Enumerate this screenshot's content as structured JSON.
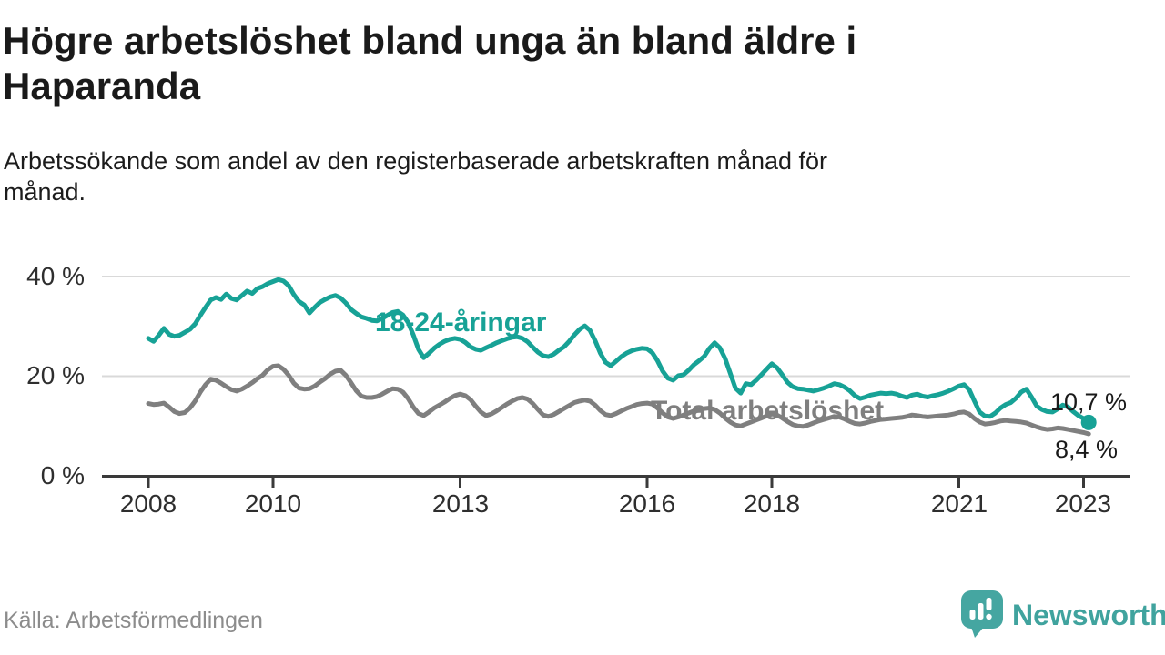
{
  "header": {
    "title_lines": [
      "Högre arbetslöshet bland unga än bland äldre i",
      "Haparanda"
    ],
    "subtitle_lines": [
      "Arbetssökande som andel av den registerbaserade arbetskraften månad för",
      "månad."
    ]
  },
  "chart_data": {
    "type": "line",
    "title": "Högre arbetslöshet bland unga än bland äldre i Haparanda",
    "subtitle": "Arbetssökande som andel av den registerbaserade arbetskraften månad för månad.",
    "unit": "%",
    "frequency": "monthly",
    "x_start": "2008-01",
    "x_end": "2023-02",
    "ylim": [
      0,
      44
    ],
    "grid": "horizontal",
    "legend_position": "inline-annotations",
    "yticks": [
      {
        "value": 40,
        "label": "40 %"
      },
      {
        "value": 20,
        "label": "20 %"
      },
      {
        "value": 0,
        "label": "0 %"
      }
    ],
    "xticks": [
      {
        "year": 2008,
        "label": "2008"
      },
      {
        "year": 2010,
        "label": "2010"
      },
      {
        "year": 2013,
        "label": "2013"
      },
      {
        "year": 2016,
        "label": "2016"
      },
      {
        "year": 2018,
        "label": "2018"
      },
      {
        "year": 2021,
        "label": "2021"
      },
      {
        "year": 2023,
        "label": "2023"
      }
    ],
    "series": [
      {
        "name": "Total arbetslöshet",
        "color": "#7f7f7f",
        "end_label": "8,4 %",
        "end_value": 8.4,
        "values": [
          14.5,
          14.3,
          14.4,
          14.6,
          13.8,
          12.9,
          12.5,
          12.7,
          13.6,
          15.0,
          16.8,
          18.3,
          19.4,
          19.2,
          18.6,
          17.9,
          17.3,
          17.0,
          17.4,
          18.0,
          18.7,
          19.5,
          20.2,
          21.3,
          22.0,
          22.1,
          21.4,
          20.2,
          18.6,
          17.6,
          17.4,
          17.5,
          18.0,
          18.8,
          19.5,
          20.4,
          21.0,
          21.2,
          20.2,
          18.7,
          17.1,
          16.0,
          15.7,
          15.7,
          15.9,
          16.4,
          17.0,
          17.5,
          17.4,
          16.8,
          15.5,
          13.8,
          12.5,
          12.1,
          12.8,
          13.6,
          14.2,
          14.8,
          15.5,
          16.1,
          16.4,
          16.1,
          15.3,
          14.0,
          12.8,
          12.1,
          12.4,
          13.0,
          13.7,
          14.4,
          15.0,
          15.5,
          15.7,
          15.4,
          14.5,
          13.3,
          12.2,
          11.9,
          12.3,
          12.9,
          13.5,
          14.1,
          14.7,
          15.0,
          15.2,
          15.0,
          14.2,
          13.1,
          12.3,
          12.1,
          12.5,
          13.0,
          13.5,
          13.9,
          14.3,
          14.5,
          14.6,
          14.4,
          13.6,
          12.6,
          11.8,
          11.5,
          11.8,
          12.2,
          12.6,
          13.0,
          13.3,
          13.5,
          13.6,
          13.3,
          12.6,
          11.6,
          10.8,
          10.2,
          10.0,
          10.4,
          10.8,
          11.2,
          11.6,
          12.0,
          12.4,
          12.2,
          11.6,
          10.9,
          10.3,
          10.0,
          9.9,
          10.2,
          10.6,
          11.0,
          11.3,
          11.6,
          11.9,
          11.8,
          11.4,
          10.9,
          10.5,
          10.4,
          10.6,
          10.9,
          11.1,
          11.3,
          11.4,
          11.5,
          11.6,
          11.7,
          11.9,
          12.2,
          12.1,
          11.9,
          11.8,
          11.9,
          12.0,
          12.1,
          12.2,
          12.4,
          12.7,
          12.8,
          12.4,
          11.5,
          10.8,
          10.4,
          10.5,
          10.7,
          11.0,
          11.1,
          11.0,
          10.9,
          10.8,
          10.6,
          10.2,
          9.8,
          9.5,
          9.3,
          9.4,
          9.6,
          9.5,
          9.3,
          9.1,
          8.9,
          8.7,
          8.4
        ]
      },
      {
        "name": "18-24-åringar",
        "color": "#17a296",
        "end_label": "10,7 %",
        "end_value": 10.7,
        "end_dot": true,
        "values": [
          27.6,
          27.0,
          28.2,
          29.6,
          28.4,
          28.0,
          28.2,
          28.8,
          29.4,
          30.5,
          32.2,
          33.8,
          35.3,
          35.8,
          35.4,
          36.5,
          35.6,
          35.3,
          36.2,
          37.1,
          36.6,
          37.6,
          38.0,
          38.6,
          39.0,
          39.4,
          39.1,
          38.2,
          36.4,
          35.0,
          34.3,
          32.7,
          33.8,
          34.8,
          35.4,
          35.9,
          36.2,
          35.7,
          34.7,
          33.4,
          32.6,
          31.9,
          31.6,
          31.2,
          31.1,
          31.6,
          32.2,
          32.8,
          33.0,
          32.3,
          30.8,
          28.3,
          25.4,
          23.7,
          24.6,
          25.6,
          26.4,
          27.0,
          27.4,
          27.6,
          27.4,
          26.8,
          25.9,
          25.4,
          25.2,
          25.7,
          26.2,
          26.7,
          27.1,
          27.5,
          27.8,
          27.9,
          27.6,
          26.9,
          25.8,
          24.8,
          24.1,
          23.9,
          24.4,
          25.2,
          25.9,
          27.0,
          28.3,
          29.4,
          30.1,
          29.2,
          27.1,
          24.6,
          22.8,
          22.1,
          23.0,
          23.9,
          24.6,
          25.1,
          25.4,
          25.6,
          25.5,
          24.7,
          23.1,
          21.0,
          19.6,
          19.2,
          20.1,
          20.3,
          21.2,
          22.3,
          23.1,
          24.0,
          25.6,
          26.7,
          25.7,
          23.6,
          20.6,
          17.6,
          16.6,
          18.5,
          18.3,
          19.2,
          20.3,
          21.4,
          22.5,
          21.7,
          20.3,
          18.8,
          17.9,
          17.5,
          17.4,
          17.2,
          17.0,
          17.3,
          17.6,
          18.0,
          18.5,
          18.3,
          17.8,
          17.1,
          16.1,
          15.5,
          15.8,
          16.2,
          16.4,
          16.6,
          16.5,
          16.6,
          16.4,
          16.0,
          15.7,
          16.2,
          16.4,
          16.0,
          15.8,
          16.1,
          16.3,
          16.6,
          17.0,
          17.5,
          18.0,
          18.3,
          17.3,
          15.0,
          12.8,
          12.0,
          11.9,
          12.6,
          13.6,
          14.3,
          14.7,
          15.6,
          16.8,
          17.4,
          15.8,
          14.0,
          13.3,
          12.9,
          12.8,
          13.4,
          14.2,
          13.8,
          12.9,
          12.1,
          11.5,
          10.7
        ]
      }
    ]
  },
  "footer": {
    "source": "Källa: Arbetsförmedlingen",
    "brand": "Newsworthy"
  },
  "colors": {
    "accent_teal": "#17a296",
    "line_gray": "#7f7f7f",
    "axis": "#3a3a3a",
    "grid": "#d9d9d9",
    "text": "#1a1a1a",
    "muted_text": "#8c8c8c",
    "brand_teal": "#40a39e"
  }
}
